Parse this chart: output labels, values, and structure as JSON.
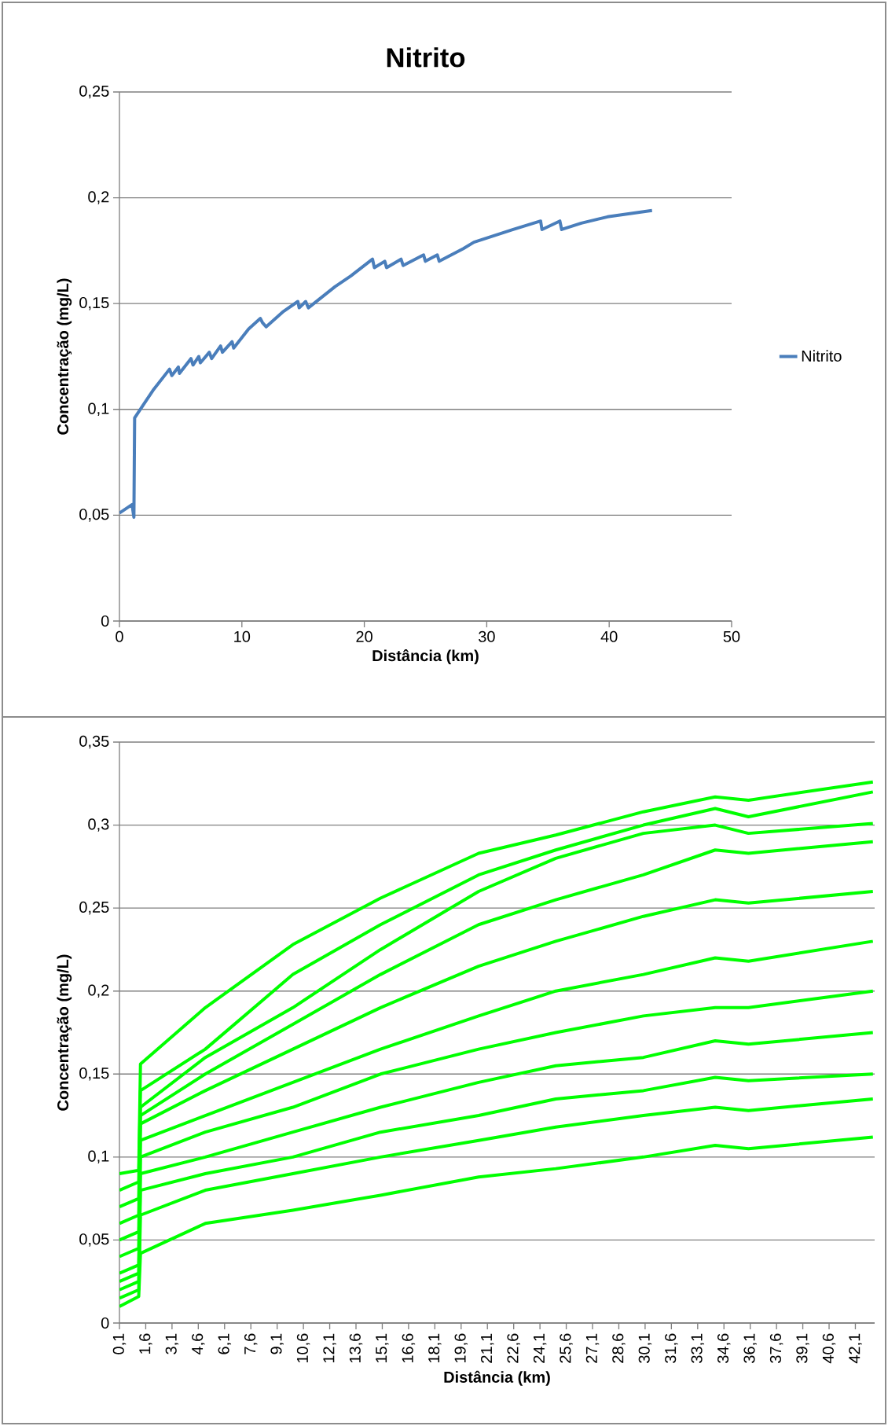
{
  "chart_data": [
    {
      "type": "line",
      "title": "Nitrito",
      "xlabel": "Distância (km)",
      "ylabel": "Concentração (mg/L)",
      "x": [
        0,
        1.03,
        1.18,
        1.24,
        2.74,
        4.09,
        4.28,
        4.81,
        4.9,
        5.84,
        6.01,
        6.48,
        6.61,
        7.34,
        7.53,
        8.26,
        8.41,
        9.2,
        9.33,
        10.55,
        11.51,
        11.68,
        11.98,
        13.33,
        14.57,
        14.68,
        15.21,
        15.43,
        17.61,
        18.89,
        20.67,
        20.82,
        21.67,
        21.82,
        23.0,
        23.17,
        24.84,
        24.99,
        25.96,
        26.12,
        28.09,
        28.95,
        32.16,
        34.4,
        34.51,
        35.97,
        36.12,
        37.72,
        39.86,
        43.5
      ],
      "series": [
        {
          "name": "Nitrito",
          "color": "#4a7ebb",
          "values": [
            0.051,
            0.055,
            0.049,
            0.096,
            0.109,
            0.119,
            0.116,
            0.12,
            0.117,
            0.124,
            0.121,
            0.125,
            0.122,
            0.127,
            0.124,
            0.13,
            0.127,
            0.132,
            0.129,
            0.138,
            0.143,
            0.141,
            0.139,
            0.146,
            0.151,
            0.148,
            0.151,
            0.148,
            0.158,
            0.163,
            0.171,
            0.167,
            0.17,
            0.167,
            0.171,
            0.168,
            0.173,
            0.17,
            0.173,
            0.17,
            0.176,
            0.179,
            0.185,
            0.189,
            0.185,
            0.189,
            0.185,
            0.188,
            0.191,
            0.194
          ]
        }
      ],
      "xlim": [
        0,
        50
      ],
      "xticks": [
        0,
        10,
        20,
        30,
        40,
        50
      ],
      "ylim": [
        0,
        0.25
      ],
      "yticks": [
        0,
        {
          "value": 0.05,
          "label": "0,05"
        },
        {
          "value": 0.1,
          "label": "0,1"
        },
        {
          "value": 0.15,
          "label": "0,15"
        },
        {
          "value": 0.2,
          "label": "0,2"
        },
        {
          "value": 0.25,
          "label": "0,25"
        }
      ],
      "grid": "y",
      "legend": "right"
    },
    {
      "type": "line",
      "xlabel": "Distância (km)",
      "ylabel": "Concentração (mg/L)",
      "x": [
        0.1,
        1.2,
        1.3,
        5,
        10,
        15,
        20.6,
        25,
        30,
        34.1,
        36,
        43.1
      ],
      "series": [
        {
          "color": "#00ff00",
          "values": [
            0.09,
            0.092,
            0.156,
            0.19,
            0.228,
            0.256,
            0.283,
            0.294,
            0.308,
            0.317,
            0.315,
            0.326
          ]
        },
        {
          "color": "#00ff00",
          "values": [
            0.08,
            0.085,
            0.14,
            0.165,
            0.21,
            0.24,
            0.27,
            0.285,
            0.3,
            0.31,
            0.305,
            0.32
          ]
        },
        {
          "color": "#00ff00",
          "values": [
            0.07,
            0.075,
            0.13,
            0.16,
            0.19,
            0.225,
            0.26,
            0.28,
            0.295,
            0.3,
            0.295,
            0.301
          ]
        },
        {
          "color": "#00ff00",
          "values": [
            0.06,
            0.065,
            0.125,
            0.15,
            0.18,
            0.21,
            0.24,
            0.255,
            0.27,
            0.285,
            0.283,
            0.29
          ]
        },
        {
          "color": "#00ff00",
          "values": [
            0.05,
            0.055,
            0.12,
            0.14,
            0.165,
            0.19,
            0.215,
            0.23,
            0.245,
            0.255,
            0.253,
            0.26
          ]
        },
        {
          "color": "#00ff00",
          "values": [
            0.04,
            0.045,
            0.11,
            0.125,
            0.145,
            0.165,
            0.185,
            0.2,
            0.21,
            0.22,
            0.218,
            0.23
          ]
        },
        {
          "color": "#00ff00",
          "values": [
            0.03,
            0.035,
            0.1,
            0.115,
            0.13,
            0.15,
            0.165,
            0.175,
            0.185,
            0.19,
            0.19,
            0.2
          ]
        },
        {
          "color": "#00ff00",
          "values": [
            0.025,
            0.03,
            0.09,
            0.1,
            0.115,
            0.13,
            0.145,
            0.155,
            0.16,
            0.17,
            0.168,
            0.175
          ]
        },
        {
          "color": "#00ff00",
          "values": [
            0.02,
            0.025,
            0.08,
            0.09,
            0.1,
            0.115,
            0.125,
            0.135,
            0.14,
            0.148,
            0.146,
            0.15
          ]
        },
        {
          "color": "#00ff00",
          "values": [
            0.015,
            0.02,
            0.065,
            0.08,
            0.09,
            0.1,
            0.11,
            0.118,
            0.125,
            0.13,
            0.128,
            0.135
          ]
        },
        {
          "color": "#00ff00",
          "values": [
            0.01,
            0.016,
            0.042,
            0.06,
            0.068,
            0.077,
            0.088,
            0.093,
            0.1,
            0.107,
            0.105,
            0.112
          ]
        }
      ],
      "xlim": [
        0.1,
        43.2
      ],
      "xticks": [
        {
          "value": 0.1,
          "label": "0,1"
        },
        {
          "value": 1.6,
          "label": "1,6"
        },
        {
          "value": 3.1,
          "label": "3,1"
        },
        {
          "value": 4.6,
          "label": "4,6"
        },
        {
          "value": 6.1,
          "label": "6,1"
        },
        {
          "value": 7.6,
          "label": "7,6"
        },
        {
          "value": 9.1,
          "label": "9,1"
        },
        {
          "value": 10.6,
          "label": "10,6"
        },
        {
          "value": 12.1,
          "label": "12,1"
        },
        {
          "value": 13.6,
          "label": "13,6"
        },
        {
          "value": 15.1,
          "label": "15,1"
        },
        {
          "value": 16.6,
          "label": "16,6"
        },
        {
          "value": 18.1,
          "label": "18,1"
        },
        {
          "value": 19.6,
          "label": "19,6"
        },
        {
          "value": 21.1,
          "label": "21,1"
        },
        {
          "value": 22.6,
          "label": "22,6"
        },
        {
          "value": 24.1,
          "label": "24,1"
        },
        {
          "value": 25.6,
          "label": "25,6"
        },
        {
          "value": 27.1,
          "label": "27,1"
        },
        {
          "value": 28.6,
          "label": "28,6"
        },
        {
          "value": 30.1,
          "label": "30,1"
        },
        {
          "value": 31.6,
          "label": "31,6"
        },
        {
          "value": 33.1,
          "label": "33,1"
        },
        {
          "value": 34.6,
          "label": "34,6"
        },
        {
          "value": 36.1,
          "label": "36,1"
        },
        {
          "value": 37.6,
          "label": "37,6"
        },
        {
          "value": 39.1,
          "label": "39,1"
        },
        {
          "value": 40.6,
          "label": "40,6"
        },
        {
          "value": 42.1,
          "label": "42,1"
        }
      ],
      "ylim": [
        0,
        0.35
      ],
      "yticks": [
        0,
        {
          "value": 0.05,
          "label": "0,05"
        },
        {
          "value": 0.1,
          "label": "0,1"
        },
        {
          "value": 0.15,
          "label": "0,15"
        },
        {
          "value": 0.2,
          "label": "0,2"
        },
        {
          "value": 0.25,
          "label": "0,25"
        },
        {
          "value": 0.3,
          "label": "0,3"
        },
        {
          "value": 0.35,
          "label": "0,35"
        }
      ],
      "grid": "y"
    }
  ]
}
